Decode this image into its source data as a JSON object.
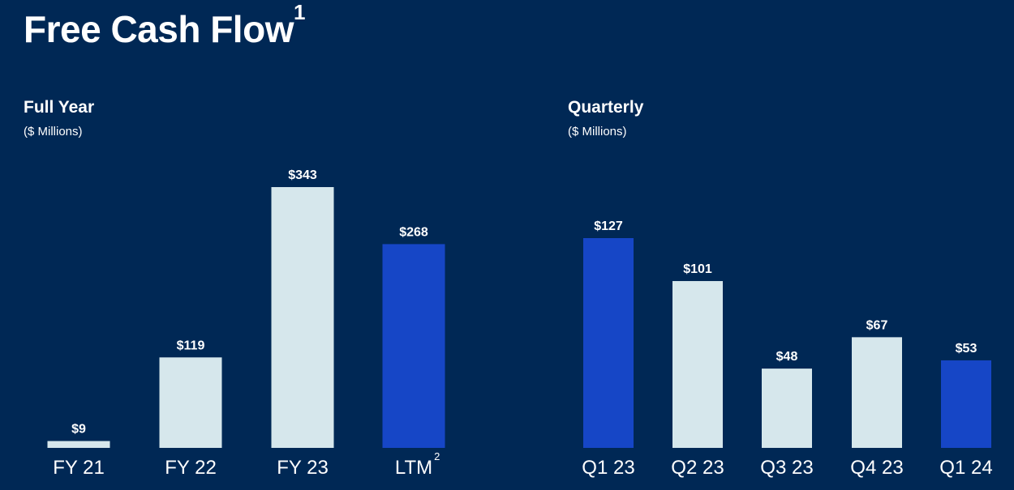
{
  "title": {
    "text": "Free Cash Flow",
    "superscript": "1"
  },
  "colors": {
    "background": "#002855",
    "light_bar": "#D6E7EC",
    "highlight_bar": "#1646C6",
    "text": "#FFFFFF"
  },
  "chart_data": [
    {
      "type": "bar",
      "title": "Full Year",
      "subtitle": "($ Millions)",
      "categories": [
        "FY 21",
        "FY 22",
        "FY 23",
        "LTM"
      ],
      "category_superscripts": [
        "",
        "",
        "",
        "2"
      ],
      "values": [
        9,
        119,
        343,
        268
      ],
      "value_labels": [
        "$9",
        "$119",
        "$343",
        "$268"
      ],
      "highlight": [
        false,
        false,
        false,
        true
      ],
      "ylim": [
        0,
        343
      ],
      "grid": false
    },
    {
      "type": "bar",
      "title": "Quarterly",
      "subtitle": "($ Millions)",
      "categories": [
        "Q1 23",
        "Q2 23",
        "Q3 23",
        "Q4 23",
        "Q1 24"
      ],
      "category_superscripts": [
        "",
        "",
        "",
        "",
        ""
      ],
      "values": [
        127,
        101,
        48,
        67,
        53
      ],
      "value_labels": [
        "$127",
        "$101",
        "$48",
        "$67",
        "$53"
      ],
      "highlight": [
        true,
        false,
        false,
        false,
        true
      ],
      "ylim": [
        0,
        127
      ],
      "grid": false
    }
  ]
}
